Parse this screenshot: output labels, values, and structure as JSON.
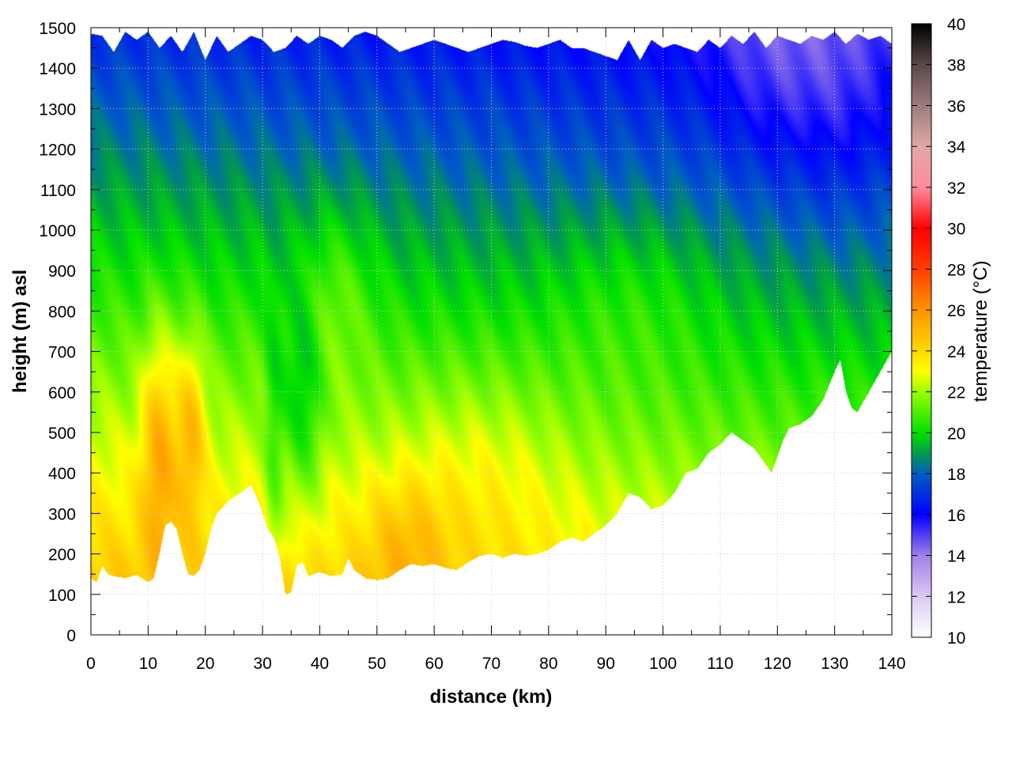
{
  "chart_data": {
    "type": "heatmap",
    "title": "",
    "xlabel": "distance (km)",
    "ylabel": "height (m) asl",
    "colorbar_label": "temperature (°C)",
    "xlim": [
      0,
      140
    ],
    "ylim": [
      0,
      1500
    ],
    "clim": [
      10,
      40
    ],
    "grid": true,
    "x_ticks": [
      "0",
      "10",
      "20",
      "30",
      "40",
      "50",
      "60",
      "70",
      "80",
      "90",
      "100",
      "110",
      "120",
      "130",
      "140"
    ],
    "y_ticks": [
      "0",
      "100",
      "200",
      "300",
      "400",
      "500",
      "600",
      "700",
      "800",
      "900",
      "1000",
      "1100",
      "1200",
      "1300",
      "1400",
      "1500"
    ],
    "colorbar_ticks": [
      "10",
      "12",
      "14",
      "16",
      "18",
      "20",
      "22",
      "24",
      "26",
      "28",
      "30",
      "32",
      "34",
      "36",
      "38",
      "40"
    ],
    "colorscale": [
      {
        "t": 10,
        "color": "#ffffff"
      },
      {
        "t": 12,
        "color": "#dcc8f4"
      },
      {
        "t": 14,
        "color": "#a07ee8"
      },
      {
        "t": 16,
        "color": "#0000ff"
      },
      {
        "t": 18,
        "color": "#005fc0"
      },
      {
        "t": 19,
        "color": "#009c49"
      },
      {
        "t": 20,
        "color": "#00e000"
      },
      {
        "t": 22,
        "color": "#9cff00"
      },
      {
        "t": 23,
        "color": "#ffff00"
      },
      {
        "t": 24,
        "color": "#ffd800"
      },
      {
        "t": 26,
        "color": "#ff9400"
      },
      {
        "t": 28,
        "color": "#ff3e00"
      },
      {
        "t": 30,
        "color": "#ff0000"
      },
      {
        "t": 32,
        "color": "#ff8c9c"
      },
      {
        "t": 34,
        "color": "#e0a8a8"
      },
      {
        "t": 36,
        "color": "#9c7c7c"
      },
      {
        "t": 38,
        "color": "#5a4848"
      },
      {
        "t": 40,
        "color": "#000000"
      }
    ],
    "terrain_bottom": {
      "x": [
        0,
        1,
        2,
        3,
        4,
        6,
        8,
        10,
        11,
        12,
        13,
        14,
        15,
        16,
        17,
        18,
        19,
        20,
        21,
        22,
        24,
        26,
        28,
        29,
        30,
        31,
        32,
        33,
        34,
        35,
        36,
        37,
        38,
        40,
        42,
        44,
        45,
        46,
        48,
        50,
        52,
        54,
        56,
        58,
        60,
        62,
        64,
        66,
        68,
        70,
        72,
        74,
        76,
        78,
        80,
        82,
        84,
        86,
        88,
        90,
        92,
        94,
        96,
        98,
        100,
        102,
        104,
        106,
        108,
        110,
        112,
        114,
        116,
        118,
        119,
        120,
        121,
        122,
        124,
        126,
        128,
        130,
        131,
        132,
        133,
        134,
        136,
        138,
        140
      ],
      "y": [
        140,
        130,
        170,
        150,
        145,
        140,
        148,
        130,
        140,
        200,
        270,
        280,
        260,
        200,
        150,
        145,
        160,
        200,
        260,
        300,
        330,
        350,
        370,
        340,
        300,
        260,
        240,
        190,
        100,
        105,
        170,
        180,
        145,
        155,
        145,
        150,
        190,
        160,
        140,
        135,
        140,
        160,
        175,
        170,
        175,
        165,
        160,
        180,
        195,
        200,
        190,
        200,
        195,
        200,
        210,
        230,
        240,
        230,
        250,
        270,
        300,
        350,
        340,
        310,
        320,
        350,
        400,
        410,
        450,
        470,
        500,
        480,
        460,
        420,
        400,
        440,
        480,
        510,
        520,
        540,
        580,
        650,
        680,
        600,
        560,
        550,
        600,
        650,
        700
      ]
    },
    "terrain_top": {
      "x": [
        0,
        2,
        4,
        6,
        8,
        10,
        12,
        14,
        16,
        18,
        20,
        22,
        24,
        26,
        28,
        30,
        32,
        34,
        36,
        38,
        40,
        42,
        44,
        46,
        48,
        50,
        52,
        54,
        56,
        58,
        60,
        62,
        64,
        66,
        68,
        70,
        72,
        74,
        76,
        78,
        80,
        82,
        84,
        86,
        88,
        90,
        92,
        94,
        96,
        98,
        100,
        102,
        104,
        106,
        108,
        110,
        112,
        114,
        116,
        118,
        120,
        122,
        124,
        126,
        128,
        130,
        132,
        134,
        136,
        138,
        140
      ],
      "y": [
        1485,
        1480,
        1440,
        1490,
        1470,
        1490,
        1450,
        1480,
        1440,
        1490,
        1420,
        1480,
        1440,
        1460,
        1480,
        1470,
        1440,
        1450,
        1480,
        1460,
        1480,
        1470,
        1450,
        1480,
        1490,
        1480,
        1460,
        1440,
        1450,
        1460,
        1470,
        1460,
        1450,
        1440,
        1450,
        1460,
        1470,
        1465,
        1455,
        1450,
        1460,
        1470,
        1450,
        1450,
        1440,
        1430,
        1420,
        1470,
        1420,
        1470,
        1450,
        1460,
        1450,
        1440,
        1470,
        1450,
        1480,
        1460,
        1490,
        1450,
        1480,
        1470,
        1460,
        1480,
        1470,
        1490,
        1460,
        1485,
        1470,
        1480,
        1460
      ]
    }
  }
}
